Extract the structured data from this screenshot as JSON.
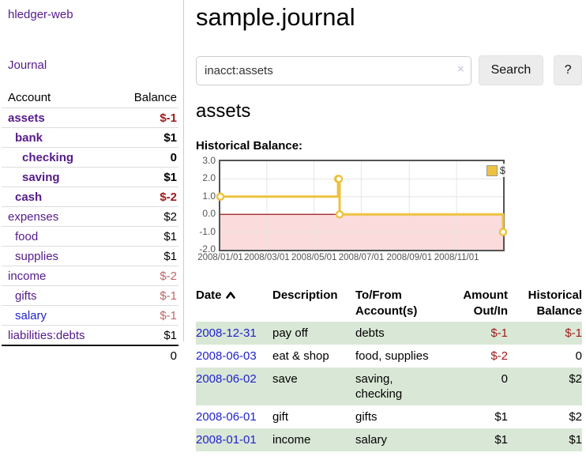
{
  "app": {
    "title": "hledger-web",
    "nav_journal": "Journal"
  },
  "colors": {
    "link_purple": "#551a8b",
    "link_blue": "#2222cc",
    "negative": "#9e1a1a",
    "negative_muted": "#c06666",
    "row_highlight_green": "#d9e8d6",
    "chart_line": "#edc240",
    "chart_negative_region": "#fbdbdb",
    "chart_zero_line": "#8b0000"
  },
  "sidebar": {
    "header": {
      "account": "Account",
      "balance": "Balance"
    },
    "accounts": [
      {
        "name": "assets",
        "indent": 0,
        "balance": "$-1",
        "in_query": true,
        "blue": false
      },
      {
        "name": "bank",
        "indent": 1,
        "balance": "$1",
        "in_query": true,
        "blue": false
      },
      {
        "name": "checking",
        "indent": 2,
        "balance": "0",
        "in_query": true,
        "blue": false
      },
      {
        "name": "saving",
        "indent": 2,
        "balance": "$1",
        "in_query": true,
        "blue": false
      },
      {
        "name": "cash",
        "indent": 1,
        "balance": "$-2",
        "in_query": true,
        "blue": false
      },
      {
        "name": "expenses",
        "indent": 0,
        "balance": "$2",
        "in_query": false,
        "blue": false
      },
      {
        "name": "food",
        "indent": 1,
        "balance": "$1",
        "in_query": false,
        "blue": false
      },
      {
        "name": "supplies",
        "indent": 1,
        "balance": "$1",
        "in_query": false,
        "blue": false
      },
      {
        "name": "income",
        "indent": 0,
        "balance": "$-2",
        "in_query": false,
        "blue": false
      },
      {
        "name": "gifts",
        "indent": 1,
        "balance": "$-1",
        "in_query": false,
        "blue": false
      },
      {
        "name": "salary",
        "indent": 1,
        "balance": "$-1",
        "in_query": false,
        "blue": true
      },
      {
        "name": "liabilities:debts",
        "indent": 0,
        "balance": "$1",
        "in_query": false,
        "blue": false
      }
    ],
    "total": "0"
  },
  "main": {
    "title": "sample.journal",
    "search": {
      "value": "inacct:assets",
      "clear_icon": "×",
      "button": "Search",
      "help_button": "?"
    },
    "account_heading": "assets",
    "chart_label": "Historical Balance:"
  },
  "chart_data": {
    "type": "line",
    "style": "step-after",
    "title": "Historical Balance",
    "legend_label": "$",
    "legend_position": "top-right",
    "grid": true,
    "xrange": [
      "2008-01-01",
      "2008-12-31"
    ],
    "ylim": [
      -2,
      3
    ],
    "y_ticks": [
      3.0,
      2.0,
      1.0,
      0.0,
      -1.0,
      -2.0
    ],
    "x_ticks": [
      "2008/01/01",
      "2008/03/01",
      "2008/05/01",
      "2008/07/01",
      "2008/09/01",
      "2008/11/01"
    ],
    "series": [
      {
        "name": "$",
        "points": [
          [
            "2008-01-01",
            1
          ],
          [
            "2008-06-01",
            2
          ],
          [
            "2008-06-02",
            2
          ],
          [
            "2008-06-03",
            0
          ],
          [
            "2008-12-31",
            -1
          ]
        ]
      }
    ],
    "line_color": "#edc240",
    "negative_region_color": "#fbdbdb",
    "zero_line_color": "#8b0000"
  },
  "register": {
    "columns": [
      {
        "label": "Date",
        "sort": "ascending"
      },
      {
        "label": "Description"
      },
      {
        "line1": "To/From",
        "line2": "Account(s)"
      },
      {
        "line1": "Amount",
        "line2": "Out/In"
      },
      {
        "line1": "Historical",
        "line2": "Balance"
      }
    ],
    "rows": [
      {
        "date": "2008-12-31",
        "description": "pay off",
        "accounts": "debts",
        "amount": "$-1",
        "balance": "$-1"
      },
      {
        "date": "2008-06-03",
        "description": "eat & shop",
        "accounts": "food, supplies",
        "amount": "$-2",
        "balance": "0"
      },
      {
        "date": "2008-06-02",
        "description": "save",
        "accounts": "saving, checking",
        "amount": "0",
        "balance": "$2"
      },
      {
        "date": "2008-06-01",
        "description": "gift",
        "accounts": "gifts",
        "amount": "$1",
        "balance": "$2"
      },
      {
        "date": "2008-01-01",
        "description": "income",
        "accounts": "salary",
        "amount": "$1",
        "balance": "$1"
      }
    ]
  }
}
